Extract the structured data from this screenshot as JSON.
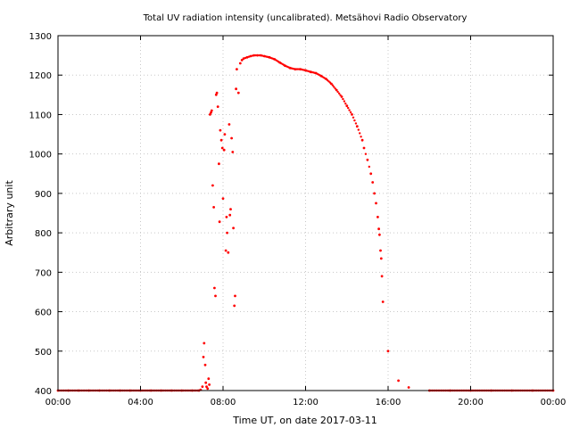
{
  "chart_data": {
    "type": "scatter",
    "title": "Total UV radiation intensity (uncalibrated). Metsähovi Radio Observatory",
    "xlabel": "Time UT, on date 2017-03-11",
    "ylabel": "Arbitrary unit",
    "xlim": [
      "00:00",
      "24:00"
    ],
    "ylim": [
      400,
      1300
    ],
    "x_ticks": [
      "00:00",
      "04:00",
      "08:00",
      "12:00",
      "16:00",
      "20:00",
      "00:00"
    ],
    "y_ticks": [
      "400",
      "500",
      "600",
      "700",
      "800",
      "900",
      "1000",
      "1100",
      "1200",
      "1300"
    ],
    "grid": "dotted",
    "colors": {
      "points": "#ff0000",
      "grid": "#c8c8c8",
      "frame": "#000000"
    },
    "series": [
      {
        "x": [
          "00:00",
          "00:30",
          "01:00",
          "01:30",
          "02:00",
          "02:30",
          "03:00",
          "03:30",
          "04:00",
          "04:30",
          "05:00",
          "05:30",
          "06:00",
          "06:30",
          "06:50",
          "06:55",
          "07:00",
          "07:03",
          "07:05",
          "07:08",
          "07:10",
          "07:12",
          "07:15",
          "07:18",
          "07:20",
          "07:22",
          "07:25",
          "07:27",
          "07:30",
          "07:33",
          "07:35",
          "07:38",
          "07:40",
          "07:42",
          "07:45",
          "07:48",
          "07:50",
          "07:52",
          "07:55",
          "07:58",
          "08:00",
          "08:03",
          "08:05",
          "08:08",
          "08:10",
          "08:12",
          "08:15",
          "08:18",
          "08:20",
          "08:22",
          "08:25",
          "08:28",
          "08:30",
          "08:33",
          "08:35",
          "08:38",
          "08:40",
          "08:45",
          "08:50",
          "08:55",
          "09:00",
          "09:10",
          "09:20",
          "09:30",
          "09:40",
          "09:50",
          "10:00",
          "10:15",
          "10:30",
          "10:45",
          "11:00",
          "11:15",
          "11:30",
          "11:45",
          "12:00",
          "12:15",
          "12:30",
          "12:45",
          "13:00",
          "13:15",
          "13:30",
          "13:45",
          "14:00",
          "14:15",
          "14:30",
          "14:45",
          "14:50",
          "15:00",
          "15:10",
          "15:15",
          "15:20",
          "15:25",
          "15:30",
          "15:33",
          "15:35",
          "15:38",
          "15:40",
          "15:42",
          "15:45",
          "16:00",
          "16:30",
          "17:00",
          "18:00",
          "19:00",
          "20:00",
          "21:00",
          "22:00",
          "23:00",
          "24:00"
        ],
        "y": [
          400,
          400,
          400,
          400,
          400,
          400,
          400,
          400,
          400,
          400,
          400,
          400,
          400,
          400,
          400,
          402,
          410,
          485,
          520,
          465,
          420,
          410,
          405,
          430,
          415,
          1100,
          1105,
          1110,
          920,
          865,
          660,
          640,
          1150,
          1155,
          1120,
          975,
          828,
          1060,
          1035,
          1015,
          887,
          1010,
          1050,
          755,
          840,
          800,
          750,
          1075,
          845,
          860,
          1040,
          1005,
          812,
          615,
          640,
          1165,
          1215,
          1155,
          1230,
          1238,
          1242,
          1245,
          1248,
          1250,
          1250,
          1250,
          1248,
          1245,
          1240,
          1232,
          1224,
          1218,
          1215,
          1215,
          1212,
          1208,
          1205,
          1198,
          1190,
          1178,
          1162,
          1145,
          1122,
          1100,
          1070,
          1035,
          1015,
          985,
          950,
          928,
          900,
          875,
          840,
          810,
          795,
          755,
          735,
          690,
          625,
          500,
          425,
          408,
          400,
          400,
          400,
          400,
          400,
          400,
          400
        ]
      }
    ]
  }
}
